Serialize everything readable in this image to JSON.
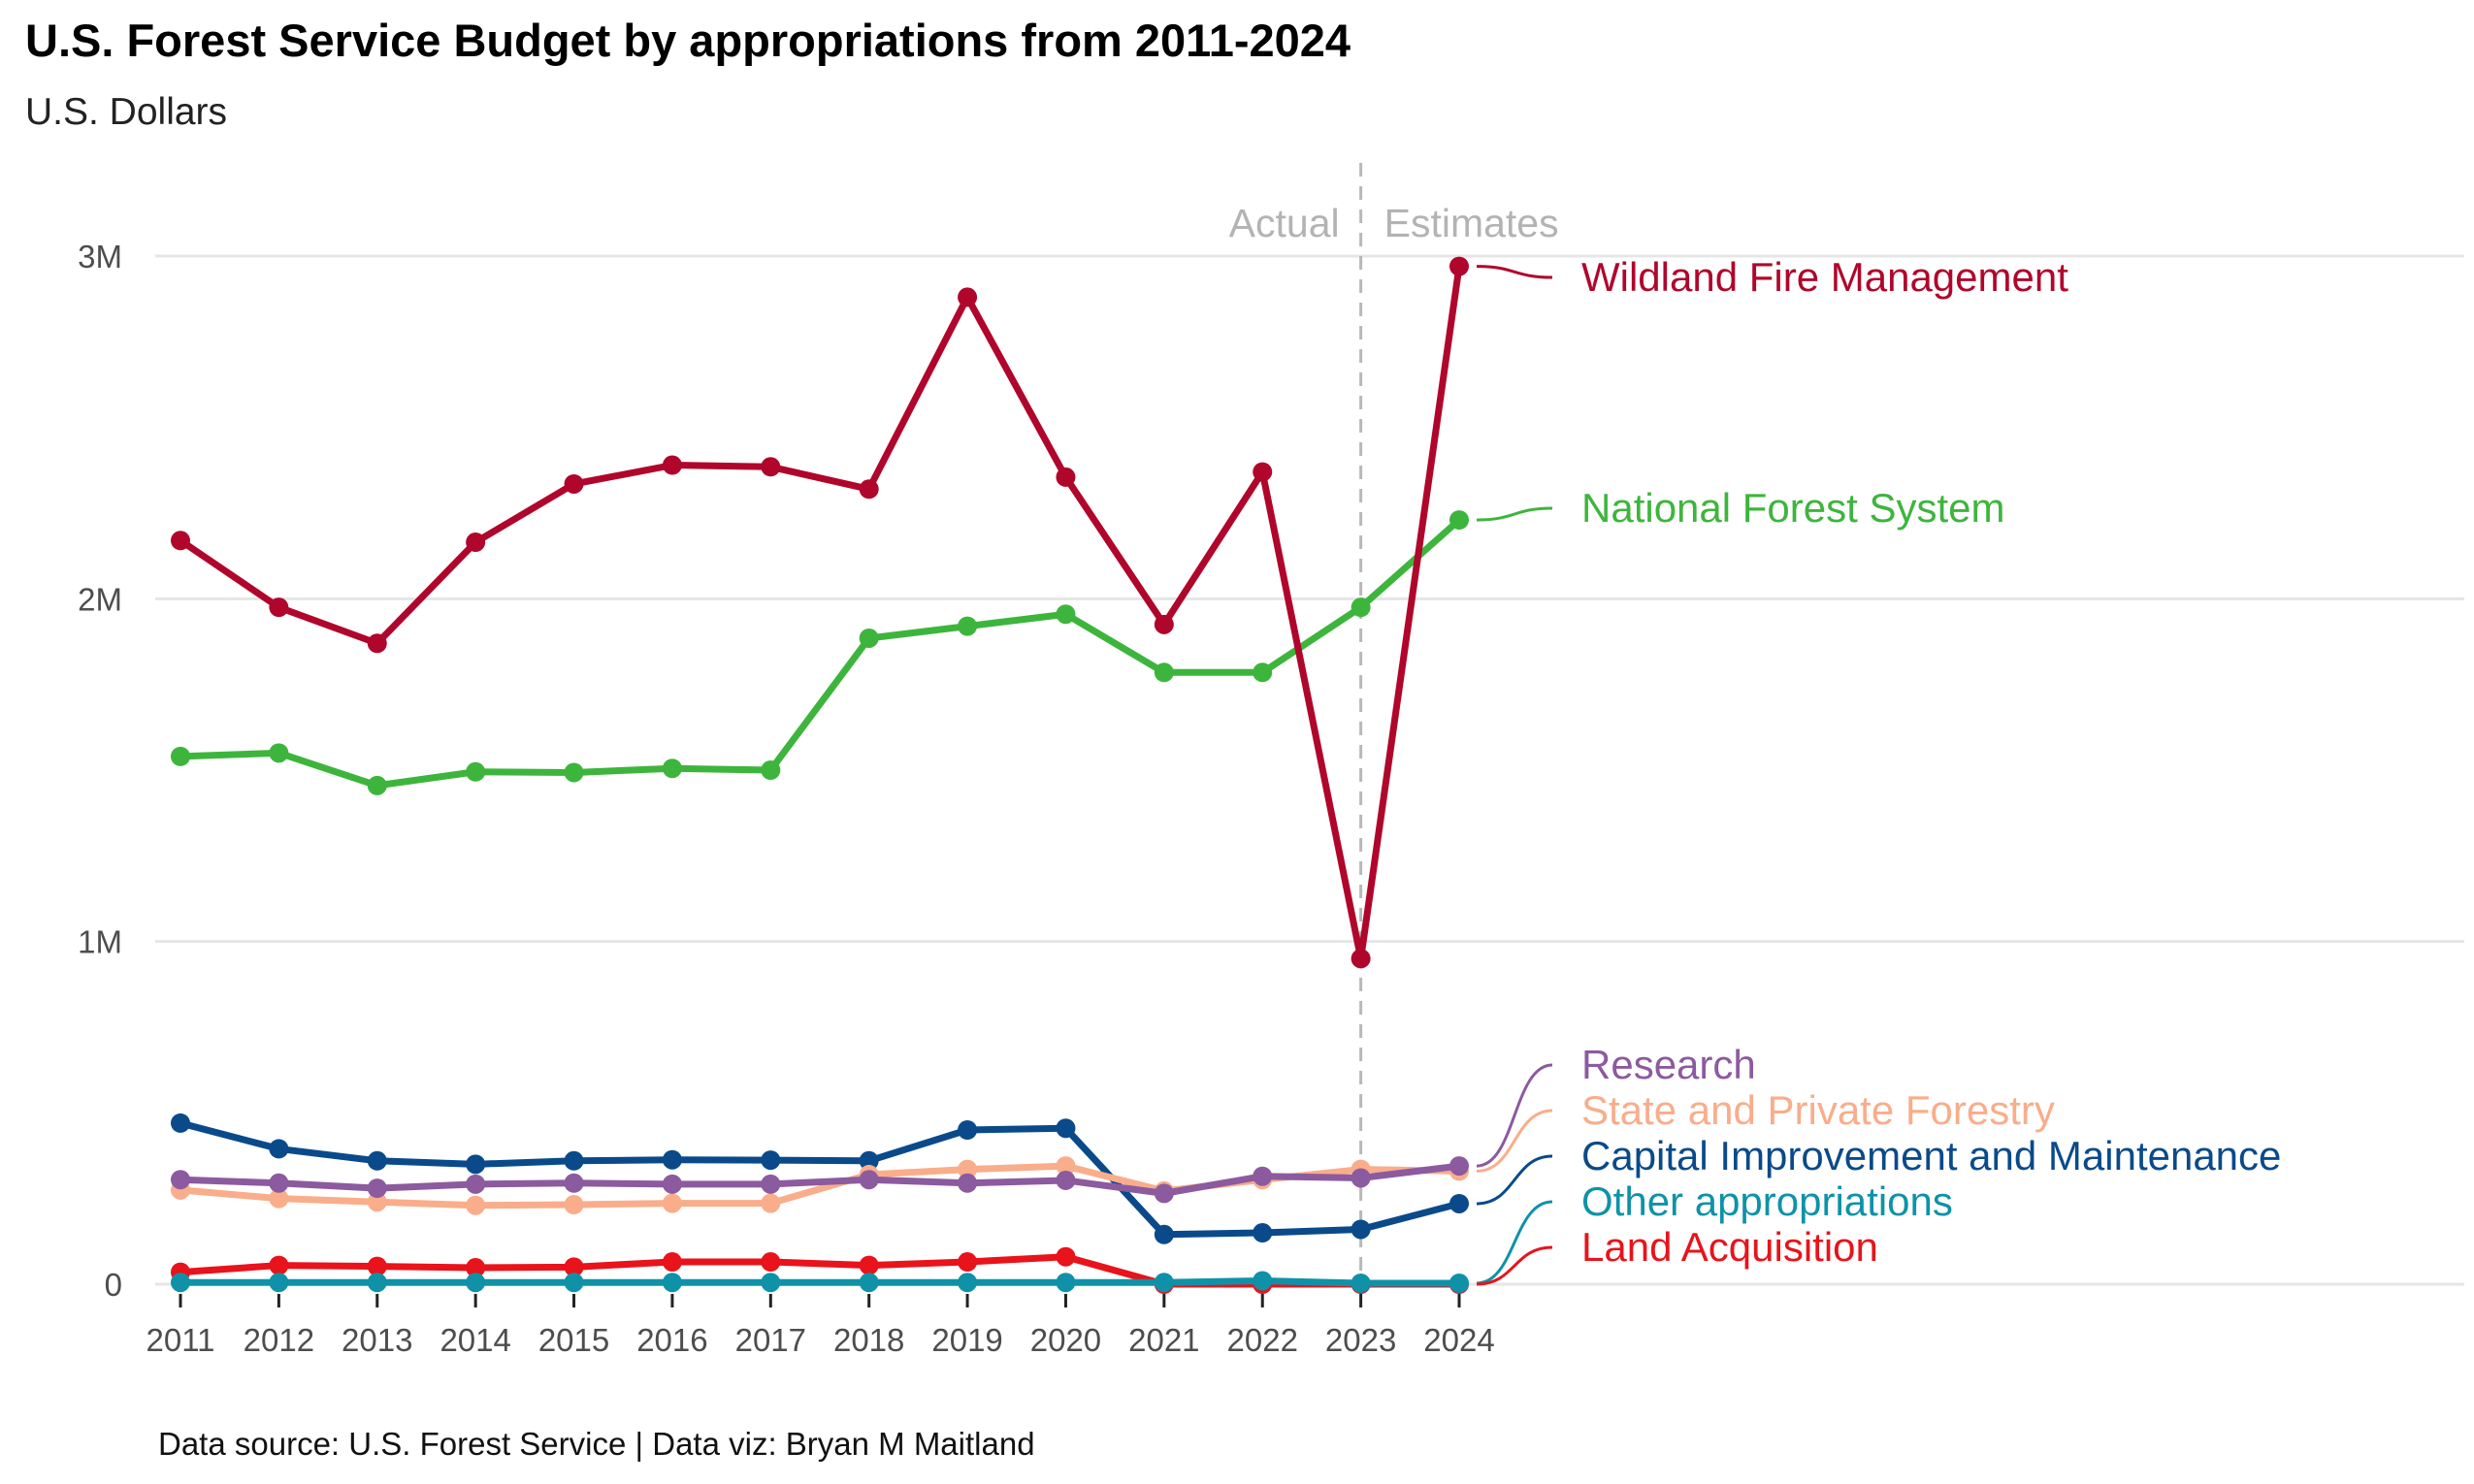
{
  "chart_data": {
    "type": "line",
    "title": "U.S. Forest Service Budget by appropriations from 2011-2024",
    "subtitle": "U.S. Dollars",
    "caption": "Data source: U.S. Forest Service | Data viz: Bryan M Maitland",
    "xlabel": "",
    "ylabel": "",
    "x": [
      2011,
      2012,
      2013,
      2014,
      2015,
      2016,
      2017,
      2018,
      2019,
      2020,
      2021,
      2022,
      2023,
      2024
    ],
    "ylim": [
      0,
      3200000
    ],
    "y_ticks": [
      0,
      1000000,
      2000000,
      3000000
    ],
    "y_tick_labels": [
      "0",
      "1M",
      "2M",
      "3M"
    ],
    "grid": true,
    "legend": "direct labels at right end of lines",
    "divider": {
      "x": 2023,
      "left_label": "Actual",
      "right_label": "Estimates"
    },
    "series": [
      {
        "name": "Wildland Fire Management",
        "color": "#b0062c",
        "values": [
          2170000,
          1975000,
          1870000,
          2165000,
          2335000,
          2390000,
          2385000,
          2320000,
          2880000,
          2355000,
          1925000,
          2370000,
          950000,
          2970000
        ]
      },
      {
        "name": "National Forest System",
        "color": "#3db53d",
        "values": [
          1540000,
          1550000,
          1455000,
          1495000,
          1493000,
          1505000,
          1500000,
          1885000,
          1920000,
          1955000,
          1785000,
          1785000,
          1975000,
          2230000
        ]
      },
      {
        "name": "Research",
        "color": "#8c5a9f",
        "values": [
          305000,
          295000,
          280000,
          292000,
          295000,
          292000,
          292000,
          305000,
          295000,
          303000,
          265000,
          315000,
          310000,
          345000
        ]
      },
      {
        "name": "State and Private Forestry",
        "color": "#f9ad8b",
        "values": [
          275000,
          250000,
          240000,
          230000,
          232000,
          236000,
          236000,
          320000,
          335000,
          345000,
          272000,
          305000,
          335000,
          330000
        ]
      },
      {
        "name": "Capital Improvement and Maintenance",
        "color": "#0a4a8a",
        "values": [
          470000,
          395000,
          360000,
          350000,
          360000,
          363000,
          362000,
          360000,
          450000,
          455000,
          145000,
          150000,
          160000,
          235000
        ]
      },
      {
        "name": "Other appropriations",
        "color": "#0f92a8",
        "values": [
          5000,
          5000,
          5000,
          5000,
          5000,
          5000,
          5000,
          5000,
          5000,
          5000,
          5000,
          10000,
          3000,
          3000
        ]
      },
      {
        "name": "Land Acquisition",
        "color": "#e8131b",
        "values": [
          35000,
          55000,
          52000,
          48000,
          50000,
          65000,
          65000,
          55000,
          65000,
          80000,
          0,
          0,
          0,
          0
        ]
      }
    ]
  }
}
